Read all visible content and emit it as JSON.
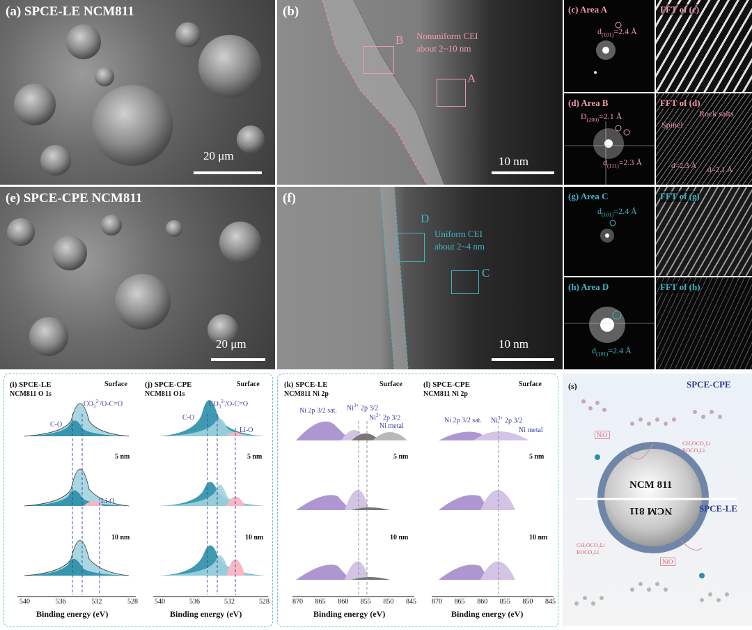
{
  "panels": {
    "a": {
      "title": "(a) SPCE-LE NCM811",
      "scale": "20 μm"
    },
    "b": {
      "letter": "(b)",
      "box_a": "A",
      "box_b": "B",
      "cei_line1": "Nonuniform CEI",
      "cei_line2": "about 2~10 nm",
      "scale": "10 nm"
    },
    "c": {
      "title": "(c) Area A",
      "d_prefix": "d",
      "d_sub": "(101)",
      "d_val": "=2.4 Å"
    },
    "c_fft": {
      "title": "FFT of (c)"
    },
    "d": {
      "title": "(d) Area B",
      "D_prefix": "D",
      "D_sub": "(200)",
      "D_val": "=2.1 Å",
      "d_prefix": "d",
      "d_sub": "(111)",
      "d_val": "=2.3 Å"
    },
    "d_fft": {
      "title": "FFT of (d)",
      "rock": "Rock salts",
      "spinel": "Spinel",
      "d1": "d=2.3 Å",
      "d2": "d=2.1 Å"
    },
    "e": {
      "title": "(e) SPCE-CPE NCM811",
      "scale": "20 μm"
    },
    "f": {
      "letter": "(f)",
      "box_c": "C",
      "box_d": "D",
      "cei_line1": "Uniform CEI",
      "cei_line2": "about 2~4 nm",
      "scale": "10 nm"
    },
    "g": {
      "title": "(g) Area C",
      "d_prefix": "d",
      "d_sub": "(101)",
      "d_val": "=2.4 Å"
    },
    "g_fft": {
      "title": "FFT of (g)"
    },
    "h": {
      "title": "(h) Area D",
      "d_prefix": "d",
      "d_sub": "(101)",
      "d_val": "=2.4 Å"
    },
    "h_fft": {
      "title": "FFT of (h)"
    }
  },
  "xps": {
    "i": {
      "title1": "(i) SPCE-LE",
      "title2": "NCM811 O 1s",
      "surface": "Surface",
      "d5": "5 nm",
      "d10": "10 nm",
      "co3": "CO",
      "co3_sub": "3",
      "co3_sup": "2-",
      "co3_rest": "/O-C=O",
      "co": "C-O",
      "lio": "Li-O",
      "ticks": [
        "540",
        "536",
        "532",
        "528"
      ],
      "xlabel": "Binding energy (eV)"
    },
    "j": {
      "title1": "(j) SPCE-CPE",
      "title2": "NCM811 O1s",
      "surface": "Surface",
      "d5": "5 nm",
      "d10": "10 nm",
      "co3": "CO",
      "co3_sub": "3",
      "co3_sup": "2-",
      "co3_rest": "/O-C=O",
      "co": "C-O",
      "lio": "Li-O",
      "ticks": [
        "540",
        "536",
        "532",
        "528"
      ],
      "xlabel": "Binding energy (eV)"
    },
    "k": {
      "title1": "(k) SPCE-LE",
      "title2": "NCM811 Ni 2p",
      "surface": "Surface",
      "d5": "5 nm",
      "d10": "10 nm",
      "sat": "Ni 2p 3/2 sat.",
      "ni3": "Ni",
      "ni3_sup": "3+",
      "ni3_rest": " 2p 3/2",
      "ni2": "Ni",
      "ni2_sup": "2+",
      "ni2_rest": " 2p 3/2",
      "nimetal": "Ni metal",
      "ticks": [
        "870",
        "865",
        "860",
        "855",
        "850",
        "845"
      ],
      "xlabel": "Binding energy (eV)"
    },
    "l": {
      "title1": "(l) SPCE-CPE",
      "title2": "NCM811 Ni 2p",
      "surface": "Surface",
      "d5": "5 nm",
      "d10": "10 nm",
      "sat": "Ni 2p 3/2 sat.",
      "ni3": "Ni",
      "ni3_sup": "3+",
      "ni3_rest": " 2p 3/2",
      "nimetal": "Ni metal",
      "ticks": [
        "870",
        "865",
        "860",
        "855",
        "850",
        "845"
      ],
      "xlabel": "Binding energy (eV)"
    }
  },
  "schematic": {
    "letter": "(s)",
    "cpe": "SPCE-CPE",
    "le": "SPCE-LE",
    "core_top": "NCM 811",
    "core_bottom": "NCM 811",
    "nio_top": "NiO",
    "nio_bottom": "NiO",
    "r1_top": "CH₃OCO₂Li",
    "r2_top": "ROCO₂Li",
    "r1_bottom": "CH₃OCO₂Li",
    "r2_bottom": "ROCO₂Li"
  },
  "colors": {
    "teal": "#2a8fa8",
    "light_teal": "#9fd3df",
    "pink": "#f5b8c4",
    "purple": "#a58ccc",
    "light_purple": "#d3c4e6",
    "grey": "#9a9a9a",
    "dash_frame": "#6cc1cc"
  }
}
